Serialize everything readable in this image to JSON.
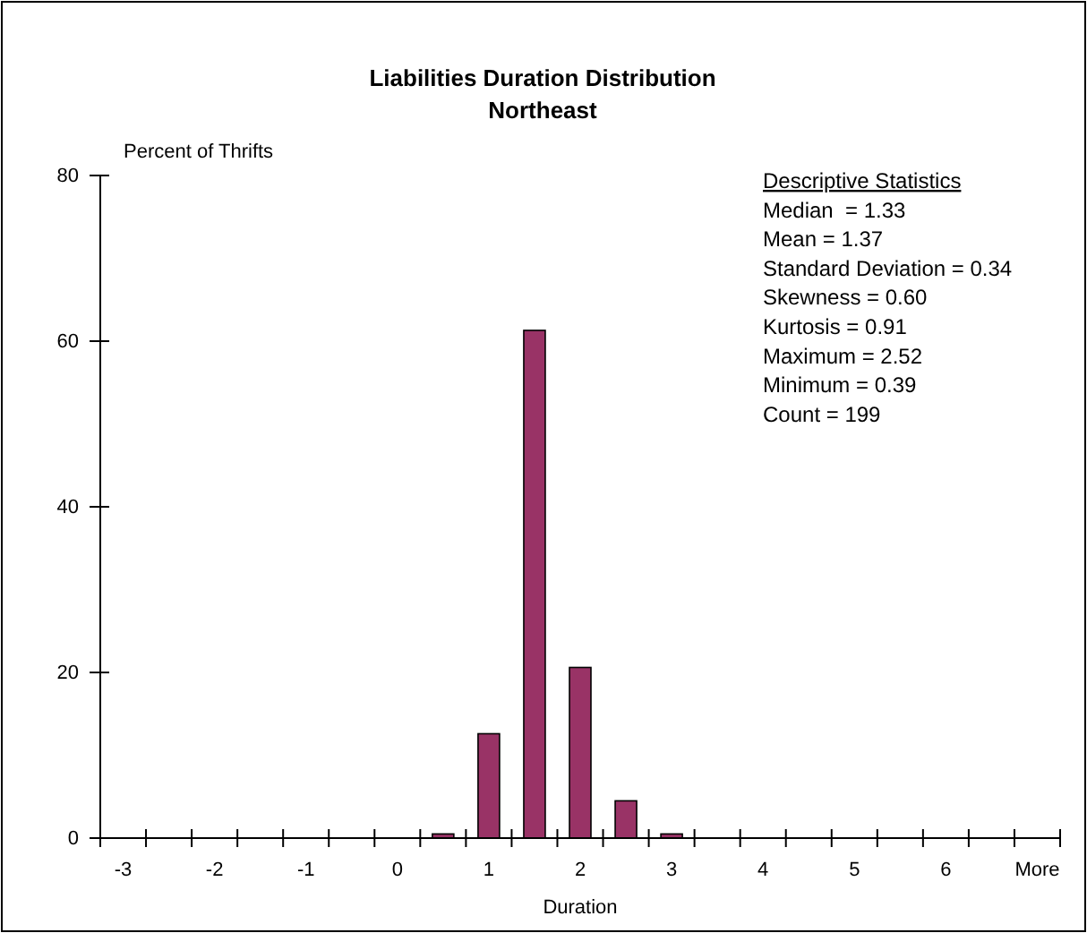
{
  "chart_data": {
    "type": "bar",
    "title": "Liabilities Duration Distribution",
    "subtitle": "Northeast",
    "xlabel": "Duration",
    "ylabel": "Percent of Thrifts",
    "categories": [
      "-3",
      null,
      "-2",
      null,
      "-1",
      null,
      "0",
      null,
      "1",
      null,
      "2",
      null,
      "3",
      null,
      "4",
      null,
      "5",
      null,
      "6",
      null,
      "More"
    ],
    "values": [
      0,
      0,
      0,
      0,
      0,
      0,
      0,
      0.5,
      12.6,
      61.3,
      20.6,
      4.5,
      0.5,
      0,
      0,
      0,
      0,
      0,
      0,
      0,
      0
    ],
    "color": "#993366",
    "ylim": [
      0,
      80
    ],
    "yticks": [
      0,
      20,
      40,
      60,
      80
    ],
    "grid": false,
    "annotations": [
      "Descriptive Statistics",
      "Median  = 1.33",
      "Mean = 1.37",
      "Standard Deviation = 0.34",
      "Skewness = 0.60",
      "Kurtosis = 0.91",
      "Maximum = 2.52",
      "Minimum = 0.39",
      "Count = 199"
    ]
  }
}
